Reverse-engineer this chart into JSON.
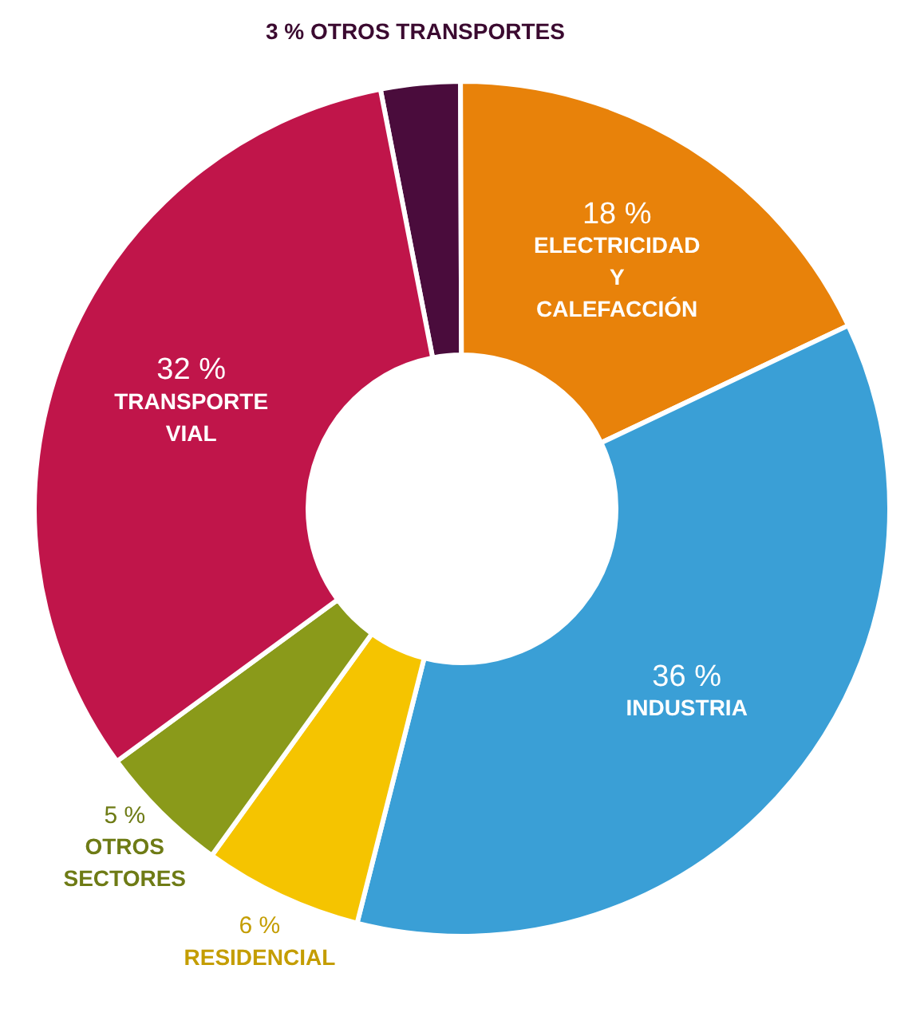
{
  "chart_data": {
    "type": "donut",
    "categories": [
      "OTROS TRANSPORTES",
      "ELECTRICIDAD Y CALEFACCIÓN",
      "INDUSTRIA",
      "RESIDENCIAL",
      "OTROS SECTORES",
      "TRANSPORTE VIAL"
    ],
    "values": [
      3,
      18,
      36,
      6,
      5,
      32
    ],
    "colors": [
      "#4a0c3c",
      "#e8820a",
      "#3a9fd6",
      "#f5c400",
      "#8a9a1a",
      "#c0154a"
    ],
    "value_labels": [
      "3 %",
      "18 %",
      "36 %",
      "6 %",
      "5 %",
      "32 %"
    ],
    "legend": false
  }
}
